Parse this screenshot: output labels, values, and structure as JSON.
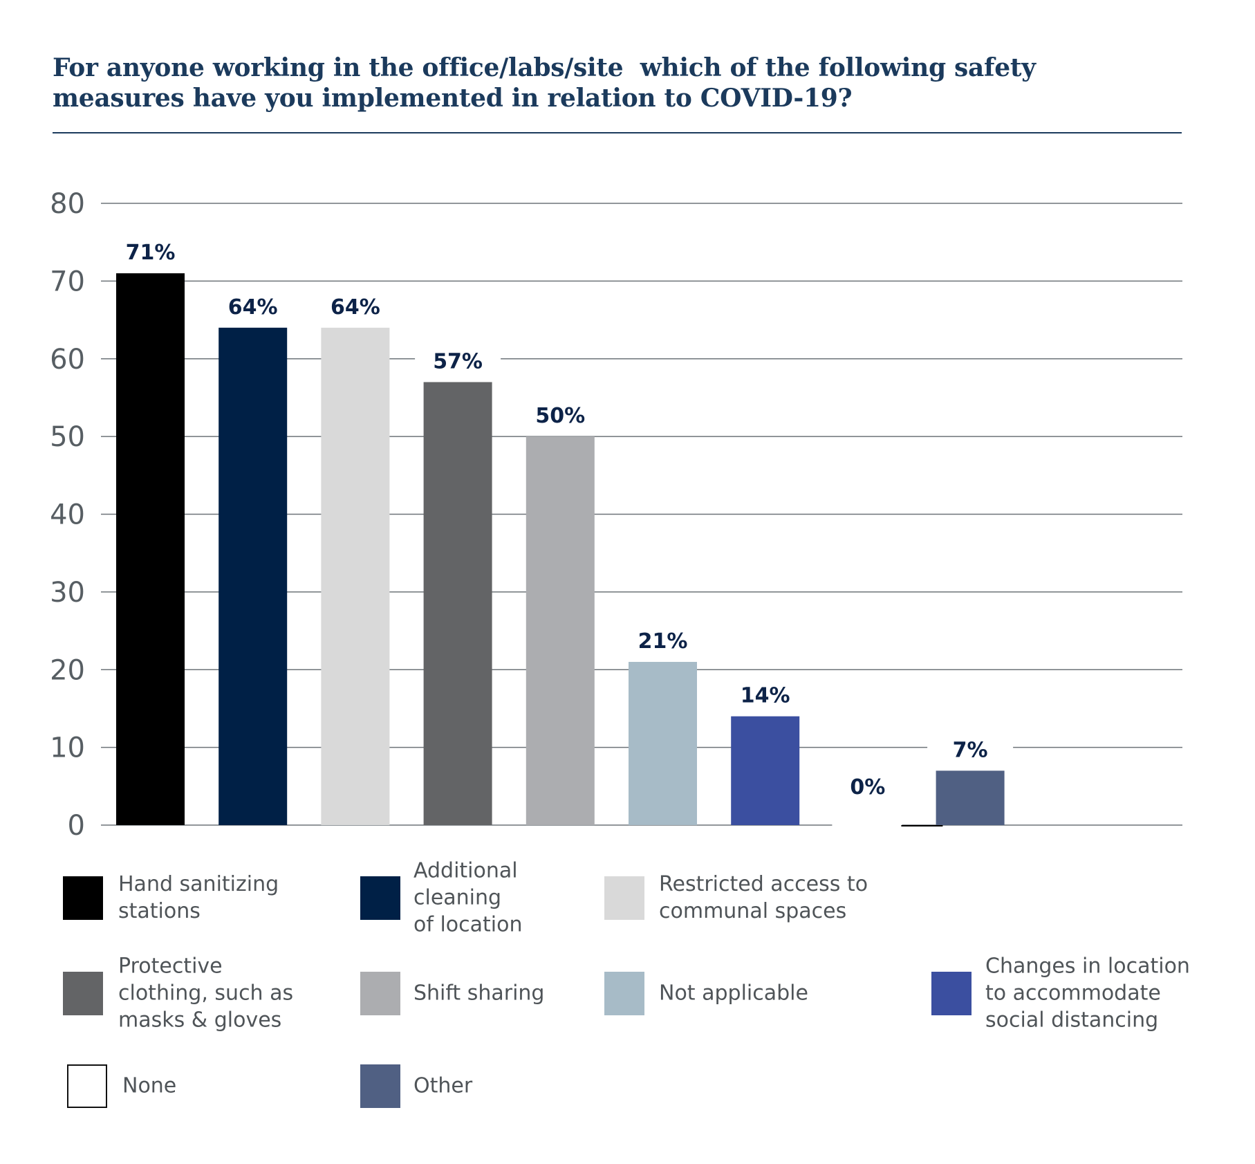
{
  "title_lines": [
    "For anyone working in the office/labs/site  which of the following safety",
    "measures have you implemented in relation to COVID-19?"
  ],
  "chart_data": {
    "type": "bar",
    "title": "For anyone working in the office/labs/site which of the following safety measures have you implemented in relation to COVID-19?",
    "xlabel": "",
    "ylabel": "",
    "ylim": [
      0,
      80
    ],
    "yticks": [
      0,
      10,
      20,
      30,
      40,
      50,
      60,
      70,
      80
    ],
    "grid": true,
    "legend_position": "bottom",
    "categories": [
      "Hand sanitizing stations",
      "Additional cleaning of location",
      "Restricted access to communal spaces",
      "Protective clothing, such as masks & gloves",
      "Shift sharing",
      "Not applicable",
      "Changes in location to accommodate social distancing",
      "None",
      "Other"
    ],
    "values": [
      71,
      64,
      64,
      57,
      50,
      21,
      14,
      0,
      7
    ],
    "data_labels": [
      "71%",
      "64%",
      "64%",
      "57%",
      "50%",
      "21%",
      "14%",
      "0%",
      "7%"
    ],
    "colors": [
      "#000000",
      "#002046",
      "#d9d9d9",
      "#636466",
      "#acadb0",
      "#a7bbc7",
      "#3b4fa0",
      "#ffffff",
      "#506083"
    ]
  },
  "legend": [
    {
      "lines": [
        "Hand sanitizing",
        "stations"
      ],
      "color": "#000000"
    },
    {
      "lines": [
        "Additional",
        "cleaning",
        "of location"
      ],
      "color": "#002046"
    },
    {
      "lines": [
        "Restricted access to",
        "communal spaces"
      ],
      "color": "#d9d9d9"
    },
    {
      "lines": [
        "Protective",
        "clothing, such as",
        "masks & gloves"
      ],
      "color": "#636466"
    },
    {
      "lines": [
        "Shift sharing"
      ],
      "color": "#acadb0"
    },
    {
      "lines": [
        "Not applicable"
      ],
      "color": "#a7bbc7"
    },
    {
      "lines": [
        "Changes in location",
        "to accommodate",
        "social distancing"
      ],
      "color": "#3b4fa0"
    },
    {
      "lines": [
        "None"
      ],
      "color": "#ffffff",
      "outlined": true
    },
    {
      "lines": [
        "Other"
      ],
      "color": "#506083"
    }
  ]
}
